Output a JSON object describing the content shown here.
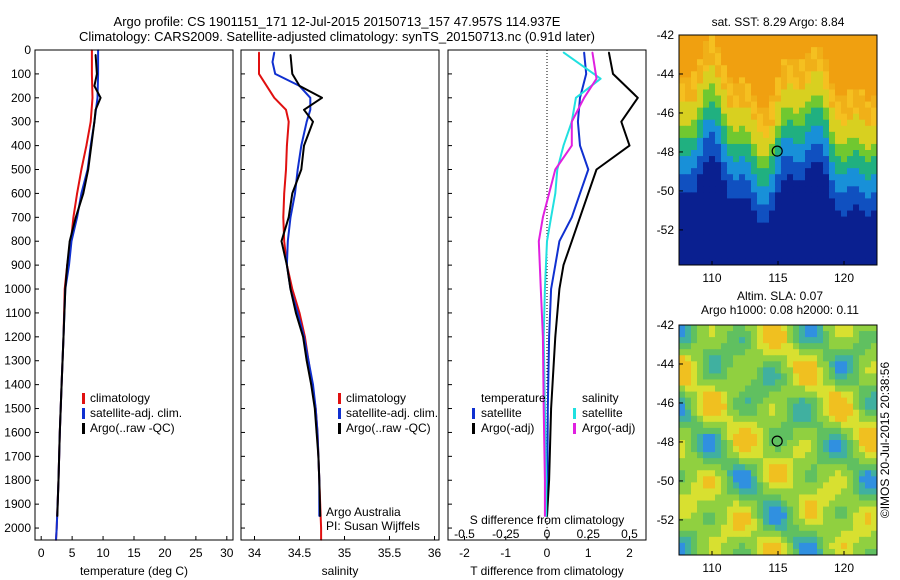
{
  "header": {
    "line1": "Argo profile: CS 1901151_171 12-Jul-2015 20150713_157 47.957S 114.937E",
    "line2": "Climatology: CARS2009. Satellite-adjusted climatology: synTS_20150713.nc (0.91d later)"
  },
  "colors": {
    "climatology": "#e01010",
    "satellite": "#1030d0",
    "argo": "#000000",
    "sat_salinity": "#20e0e0",
    "argo_salinity": "#e020e0"
  },
  "chart_data": [
    {
      "type": "line",
      "id": "temperature",
      "xlabel": "temperature (deg C)",
      "ylabel": "",
      "xlim": [
        -1,
        31
      ],
      "ylim": [
        2050,
        0
      ],
      "xticks": [
        0,
        5,
        10,
        15,
        20,
        25,
        30
      ],
      "yticks": [
        0,
        100,
        200,
        300,
        400,
        500,
        600,
        700,
        800,
        900,
        1000,
        1100,
        1200,
        1300,
        1400,
        1500,
        1600,
        1700,
        1800,
        1900,
        2000
      ],
      "legend": [
        "climatology",
        "satellite-adj. clim.",
        "Argo(..raw -QC)"
      ],
      "series": [
        {
          "name": "climatology",
          "color": "#e01010",
          "points": [
            [
              8.2,
              0
            ],
            [
              8.2,
              100
            ],
            [
              8.3,
              200
            ],
            [
              8.0,
              300
            ],
            [
              7.3,
              400
            ],
            [
              6.5,
              500
            ],
            [
              5.8,
              600
            ],
            [
              5.2,
              700
            ],
            [
              4.8,
              800
            ],
            [
              4.2,
              900
            ],
            [
              3.8,
              1000
            ],
            [
              3.6,
              1200
            ],
            [
              3.3,
              1400
            ],
            [
              3.0,
              1600
            ],
            [
              2.8,
              1800
            ],
            [
              2.5,
              2000
            ],
            [
              2.4,
              2050
            ]
          ]
        },
        {
          "name": "satellite-adj. clim.",
          "color": "#1030d0",
          "points": [
            [
              9.2,
              0
            ],
            [
              9.2,
              100
            ],
            [
              9.1,
              200
            ],
            [
              8.6,
              300
            ],
            [
              8.0,
              400
            ],
            [
              7.5,
              500
            ],
            [
              6.5,
              600
            ],
            [
              5.8,
              700
            ],
            [
              4.9,
              800
            ],
            [
              4.5,
              900
            ],
            [
              3.9,
              1000
            ],
            [
              3.6,
              1200
            ],
            [
              3.3,
              1400
            ],
            [
              3.0,
              1600
            ],
            [
              2.8,
              1800
            ],
            [
              2.5,
              2000
            ],
            [
              2.4,
              2050
            ]
          ]
        },
        {
          "name": "Argo(..raw -QC)",
          "color": "#000000",
          "points": [
            [
              8.8,
              20
            ],
            [
              9.0,
              100
            ],
            [
              8.6,
              150
            ],
            [
              9.6,
              200
            ],
            [
              8.8,
              250
            ],
            [
              8.6,
              300
            ],
            [
              8.1,
              400
            ],
            [
              7.6,
              500
            ],
            [
              6.8,
              600
            ],
            [
              5.6,
              700
            ],
            [
              4.6,
              800
            ],
            [
              4.2,
              900
            ],
            [
              3.9,
              1000
            ],
            [
              3.6,
              1200
            ],
            [
              3.3,
              1400
            ],
            [
              3.0,
              1600
            ],
            [
              2.8,
              1800
            ],
            [
              2.6,
              1950
            ]
          ]
        }
      ]
    },
    {
      "type": "line",
      "id": "salinity",
      "xlabel": "salinity",
      "ylabel": "",
      "xlim": [
        33.85,
        36.05
      ],
      "ylim": [
        2050,
        0
      ],
      "xticks": [
        34,
        34.5,
        35,
        35.5,
        36
      ],
      "legend": [
        "climatology",
        "satellite-adj. clim.",
        "Argo(..raw -QC)"
      ],
      "annotations": [
        "Argo Australia",
        "PI: Susan Wijffels"
      ],
      "series": [
        {
          "name": "climatology",
          "color": "#e01010",
          "points": [
            [
              34.05,
              10
            ],
            [
              34.05,
              100
            ],
            [
              34.22,
              200
            ],
            [
              34.35,
              250
            ],
            [
              34.38,
              300
            ],
            [
              34.36,
              400
            ],
            [
              34.35,
              500
            ],
            [
              34.33,
              600
            ],
            [
              34.32,
              700
            ],
            [
              34.33,
              800
            ],
            [
              34.36,
              900
            ],
            [
              34.42,
              1000
            ],
            [
              34.5,
              1100
            ],
            [
              34.56,
              1200
            ],
            [
              34.6,
              1300
            ],
            [
              34.64,
              1400
            ],
            [
              34.68,
              1500
            ],
            [
              34.7,
              1600
            ],
            [
              34.71,
              1700
            ],
            [
              34.72,
              1800
            ],
            [
              34.73,
              1900
            ],
            [
              34.74,
              2000
            ],
            [
              34.74,
              2050
            ]
          ]
        },
        {
          "name": "satellite-adj. clim.",
          "color": "#1030d0",
          "points": [
            [
              34.22,
              10
            ],
            [
              34.2,
              50
            ],
            [
              34.23,
              100
            ],
            [
              34.5,
              150
            ],
            [
              34.62,
              200
            ],
            [
              34.62,
              250
            ],
            [
              34.58,
              300
            ],
            [
              34.52,
              400
            ],
            [
              34.48,
              500
            ],
            [
              34.45,
              600
            ],
            [
              34.4,
              700
            ],
            [
              34.37,
              800
            ],
            [
              34.36,
              900
            ],
            [
              34.4,
              1000
            ],
            [
              34.48,
              1100
            ],
            [
              34.55,
              1200
            ],
            [
              34.6,
              1300
            ],
            [
              34.65,
              1400
            ],
            [
              34.68,
              1500
            ],
            [
              34.7,
              1600
            ],
            [
              34.71,
              1700
            ],
            [
              34.72,
              1800
            ],
            [
              34.72,
              1950
            ]
          ]
        },
        {
          "name": "Argo(..raw -QC)",
          "color": "#000000",
          "points": [
            [
              34.4,
              20
            ],
            [
              34.42,
              100
            ],
            [
              34.5,
              150
            ],
            [
              34.75,
              200
            ],
            [
              34.55,
              250
            ],
            [
              34.65,
              300
            ],
            [
              34.55,
              400
            ],
            [
              34.52,
              500
            ],
            [
              34.42,
              600
            ],
            [
              34.38,
              700
            ],
            [
              34.3,
              800
            ],
            [
              34.36,
              900
            ],
            [
              34.4,
              1000
            ],
            [
              34.46,
              1100
            ],
            [
              34.54,
              1200
            ],
            [
              34.58,
              1300
            ],
            [
              34.63,
              1400
            ],
            [
              34.67,
              1500
            ],
            [
              34.69,
              1600
            ],
            [
              34.71,
              1700
            ],
            [
              34.72,
              1800
            ],
            [
              34.73,
              1950
            ]
          ]
        }
      ]
    },
    {
      "type": "line",
      "id": "difference",
      "xlabel": "T difference from climatology",
      "xlabel_secondary": "S difference from climatology",
      "xlim": [
        -2.4,
        2.4
      ],
      "ylim": [
        2050,
        0
      ],
      "xticks": [
        -2,
        -1,
        0,
        1,
        2
      ],
      "xticks_secondary": [
        "-0.5",
        "-0.25",
        "0",
        "0.25",
        "0.5"
      ],
      "legend_titles": [
        "temperature",
        "salinity"
      ],
      "legend": [
        "satellite",
        "Argo(-adj)",
        "satellite",
        "Argo(-adj)"
      ],
      "series": [
        {
          "name": "satellite",
          "group": "temperature",
          "color": "#1030d0",
          "points": [
            [
              0.9,
              10
            ],
            [
              0.95,
              100
            ],
            [
              0.8,
              200
            ],
            [
              0.75,
              300
            ],
            [
              0.8,
              400
            ],
            [
              1.0,
              500
            ],
            [
              0.8,
              600
            ],
            [
              0.6,
              700
            ],
            [
              0.3,
              800
            ],
            [
              0.2,
              900
            ],
            [
              0.1,
              1000
            ],
            [
              0.05,
              1200
            ],
            [
              0.02,
              1500
            ],
            [
              0.01,
              1800
            ],
            [
              0.0,
              1950
            ]
          ]
        },
        {
          "name": "Argo(-adj)",
          "group": "temperature",
          "color": "#000000",
          "points": [
            [
              1.5,
              10
            ],
            [
              1.6,
              100
            ],
            [
              2.2,
              200
            ],
            [
              1.8,
              300
            ],
            [
              2.0,
              400
            ],
            [
              1.2,
              500
            ],
            [
              0.8,
              700
            ],
            [
              0.6,
              800
            ],
            [
              0.4,
              900
            ],
            [
              0.3,
              1000
            ],
            [
              0.2,
              1200
            ],
            [
              0.1,
              1500
            ],
            [
              0.05,
              1800
            ],
            [
              0.0,
              1950
            ]
          ]
        },
        {
          "name": "satellite",
          "group": "salinity",
          "color": "#20e0e0",
          "points": [
            [
              0.4,
              10
            ],
            [
              1.3,
              120
            ],
            [
              0.7,
              200
            ],
            [
              0.6,
              300
            ],
            [
              0.4,
              400
            ],
            [
              0.25,
              500
            ],
            [
              0.2,
              600
            ],
            [
              0.1,
              700
            ],
            [
              0.0,
              800
            ],
            [
              -0.05,
              1000
            ],
            [
              -0.08,
              1200
            ],
            [
              -0.05,
              1500
            ],
            [
              -0.02,
              1800
            ],
            [
              -0.02,
              1950
            ]
          ]
        },
        {
          "name": "Argo(-adj)",
          "group": "salinity",
          "color": "#e020e0",
          "points": [
            [
              1.1,
              10
            ],
            [
              1.2,
              120
            ],
            [
              0.9,
              200
            ],
            [
              0.6,
              300
            ],
            [
              0.6,
              400
            ],
            [
              0.2,
              500
            ],
            [
              0.05,
              600
            ],
            [
              -0.1,
              700
            ],
            [
              -0.2,
              800
            ],
            [
              -0.15,
              1000
            ],
            [
              -0.1,
              1200
            ],
            [
              -0.08,
              1500
            ],
            [
              -0.05,
              1800
            ],
            [
              -0.05,
              1950
            ]
          ]
        }
      ]
    },
    {
      "type": "heatmap",
      "id": "sst-map",
      "title": "sat. SST: 8.29 Argo: 8.84",
      "xlim": [
        107.5,
        122.5
      ],
      "ylim": [
        -53.8,
        -42
      ],
      "xticks": [
        110,
        115,
        120
      ],
      "yticks": [
        -42,
        -44,
        -46,
        -48,
        -50,
        -52
      ],
      "marker": {
        "lon": 114.937,
        "lat": -47.957
      }
    },
    {
      "type": "heatmap",
      "id": "sla-map",
      "title": "Altim. SLA: 0.07",
      "subtitle": "Argo h1000: 0.08 h2000: 0.11",
      "xlim": [
        107.5,
        122.5
      ],
      "ylim": [
        -53.8,
        -42
      ],
      "xticks": [
        110,
        115,
        120
      ],
      "yticks": [
        -42,
        -44,
        -46,
        -48,
        -50,
        -52
      ],
      "marker": {
        "lon": 114.937,
        "lat": -47.957
      }
    }
  ],
  "footer": {
    "stamp": "©IMOS 20-Jul-2015 20:38:56"
  }
}
